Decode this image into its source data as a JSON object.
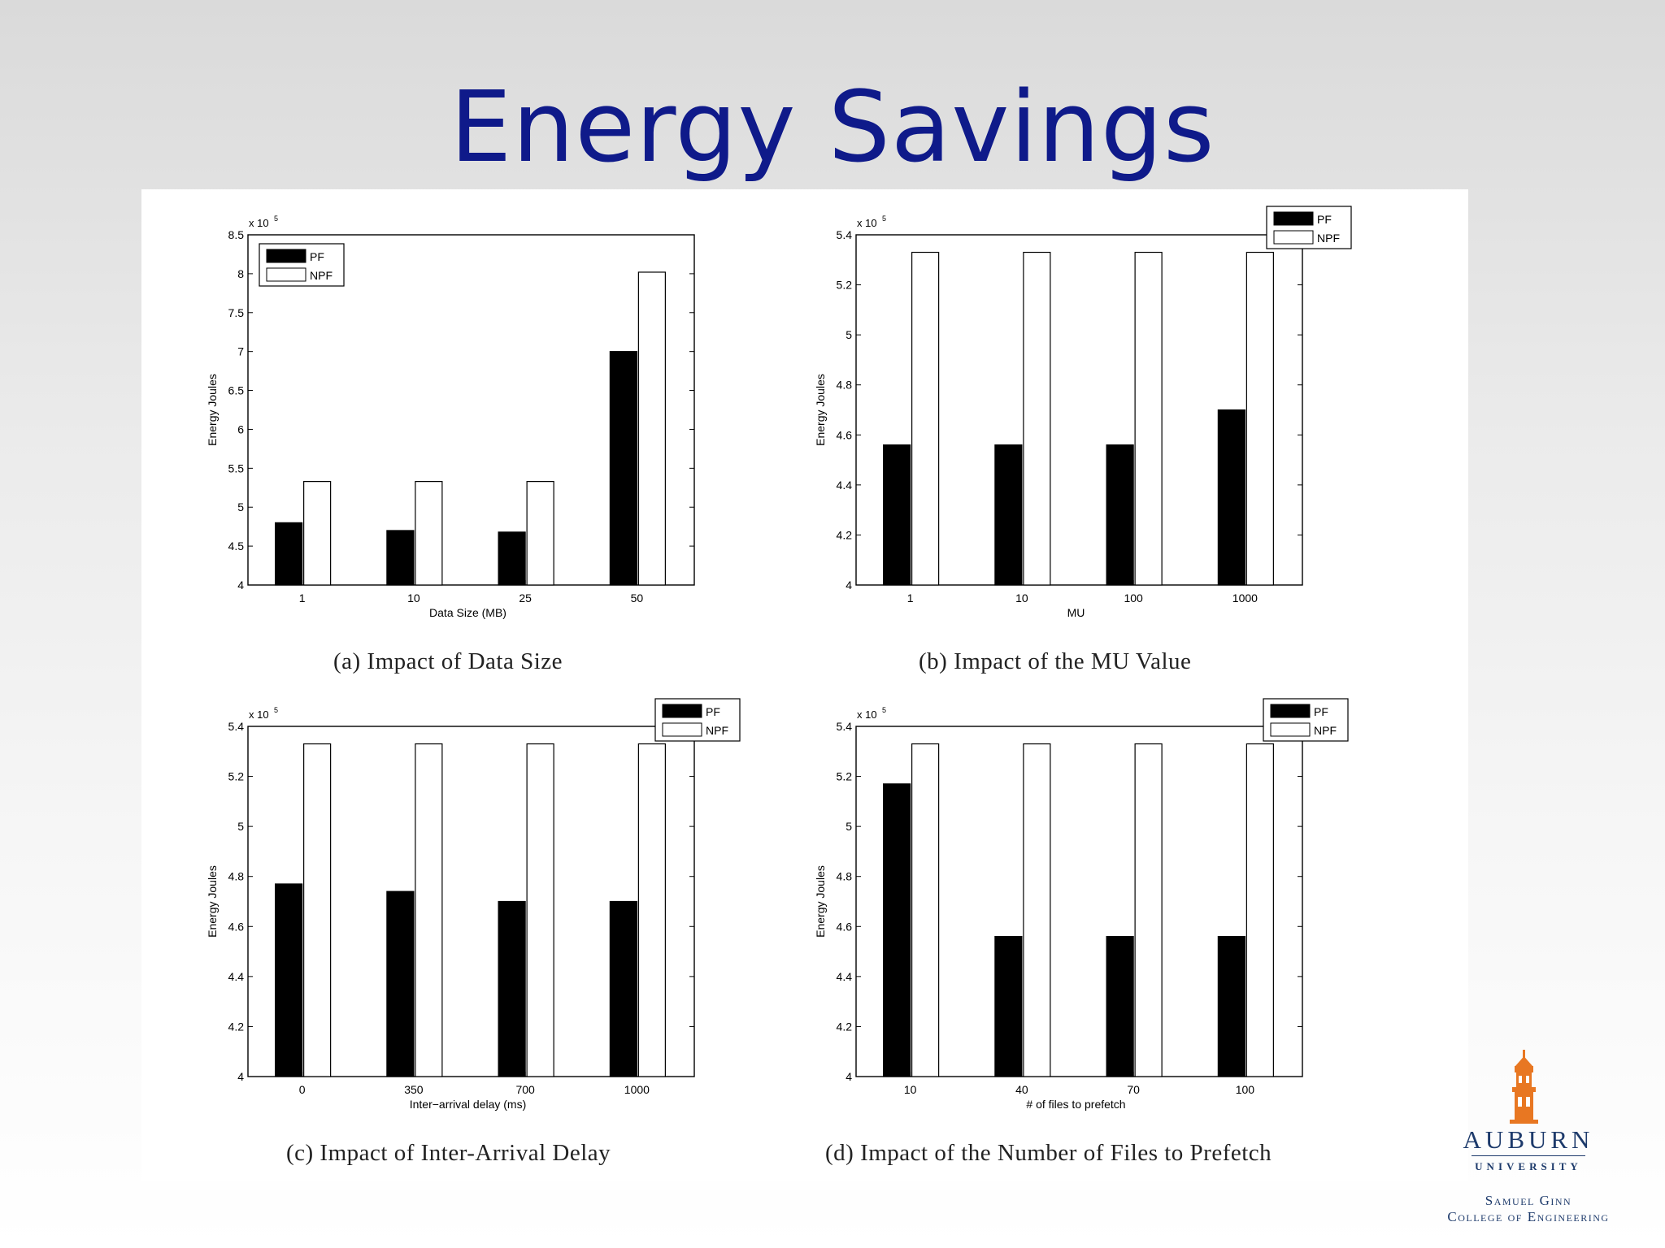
{
  "slide": {
    "title": "Energy Savings"
  },
  "colors": {
    "title": "#0f1a8a",
    "pf": "#000000",
    "npf": "#ffffff",
    "logo_tower": "#e87722",
    "logo_text": "#1d3a6b"
  },
  "logo": {
    "name": "AUBURN",
    "university": "UNIVERSITY",
    "college_line1": "Samuel Ginn",
    "college_line2": "College of Engineering"
  },
  "chart_data": [
    {
      "type": "bar",
      "caption": "(a) Impact of Data Size",
      "categories": [
        "1",
        "10",
        "25",
        "50"
      ],
      "xlabel": "Data Size (MB)",
      "ylabel": "Energy Joules",
      "exponent": "x 10",
      "exponent_power": "5",
      "ylim": [
        4,
        8.5
      ],
      "yticks": [
        "4",
        "4.5",
        "5",
        "5.5",
        "6",
        "6.5",
        "7",
        "7.5",
        "8",
        "8.5"
      ],
      "legend_position": "top-left",
      "series": [
        {
          "name": "PF",
          "values": [
            4.8,
            4.7,
            4.68,
            7.0
          ]
        },
        {
          "name": "NPF",
          "values": [
            5.33,
            5.33,
            5.33,
            8.02
          ]
        }
      ]
    },
    {
      "type": "bar",
      "caption": "(b) Impact of the MU Value",
      "categories": [
        "1",
        "10",
        "100",
        "1000"
      ],
      "xlabel": "MU",
      "ylabel": "Energy Joules",
      "exponent": "x 10",
      "exponent_power": "5",
      "ylim": [
        4,
        5.4
      ],
      "yticks": [
        "4",
        "4.2",
        "4.4",
        "4.6",
        "4.8",
        "5",
        "5.2",
        "5.4"
      ],
      "legend_position": "top-right",
      "series": [
        {
          "name": "PF",
          "values": [
            4.56,
            4.56,
            4.56,
            4.7
          ]
        },
        {
          "name": "NPF",
          "values": [
            5.33,
            5.33,
            5.33,
            5.33
          ]
        }
      ]
    },
    {
      "type": "bar",
      "caption": "(c) Impact of Inter-Arrival Delay",
      "categories": [
        "0",
        "350",
        "700",
        "1000"
      ],
      "xlabel": "Inter−arrival delay (ms)",
      "ylabel": "Energy Joules",
      "exponent": "x 10",
      "exponent_power": "5",
      "ylim": [
        4,
        5.4
      ],
      "yticks": [
        "4",
        "4.2",
        "4.4",
        "4.6",
        "4.8",
        "5",
        "5.2",
        "5.4"
      ],
      "legend_position": "top-right",
      "series": [
        {
          "name": "PF",
          "values": [
            4.77,
            4.74,
            4.7,
            4.7
          ]
        },
        {
          "name": "NPF",
          "values": [
            5.33,
            5.33,
            5.33,
            5.33
          ]
        }
      ]
    },
    {
      "type": "bar",
      "caption": "(d) Impact of the Number of Files to Prefetch",
      "categories": [
        "10",
        "40",
        "70",
        "100"
      ],
      "xlabel": "# of files to prefetch",
      "ylabel": "Energy Joules",
      "exponent": "x 10",
      "exponent_power": "5",
      "ylim": [
        4,
        5.4
      ],
      "yticks": [
        "4",
        "4.2",
        "4.4",
        "4.6",
        "4.8",
        "5",
        "5.2",
        "5.4"
      ],
      "legend_position": "top-right",
      "series": [
        {
          "name": "PF",
          "values": [
            5.17,
            4.56,
            4.56,
            4.56
          ]
        },
        {
          "name": "NPF",
          "values": [
            5.33,
            5.33,
            5.33,
            5.33
          ]
        }
      ]
    }
  ]
}
